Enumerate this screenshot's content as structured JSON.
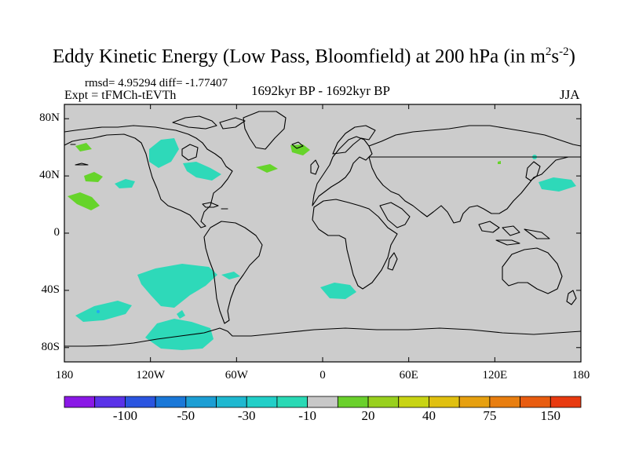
{
  "title": {
    "main": "Eddy Kinetic Energy (Low Pass, Bloomfield) at 200 hPa (in m",
    "sup1": "2",
    "mid": "s",
    "sup2": "-2",
    "end": ")"
  },
  "stats_text": "rmsd= 4.95294 diff= -1.77407",
  "expt_text": "Expt = tFMCh-tEVTh",
  "period_text": "1692kyr BP - 1692kyr BP",
  "season_text": "JJA",
  "y_ticks": [
    "80N",
    "40N",
    "0",
    "40S",
    "80S"
  ],
  "x_ticks": [
    "180",
    "120W",
    "60W",
    "0",
    "60E",
    "120E",
    "180"
  ],
  "colorbar": {
    "colors": [
      "#8a18e6",
      "#5a32e8",
      "#2b55e0",
      "#1a78d8",
      "#1c9ed4",
      "#1fb8d0",
      "#22cfc8",
      "#2ad9b5",
      "#c8c8c8",
      "#6ad02c",
      "#98d01e",
      "#c8d414",
      "#e0c010",
      "#e6a010",
      "#e87e10",
      "#e85c10",
      "#e83a10"
    ],
    "labels": [
      "-100",
      "-50",
      "-30",
      "-10",
      "20",
      "40",
      "75",
      "150"
    ]
  },
  "map": {
    "background_color": "#cccccc",
    "region_colors": {
      "negative": "#2ed9b9",
      "positive": "#66d42a",
      "dot_blue": "#22aaf0"
    },
    "lat_range": [
      -90,
      90
    ],
    "lon_range": [
      -180,
      180
    ]
  }
}
